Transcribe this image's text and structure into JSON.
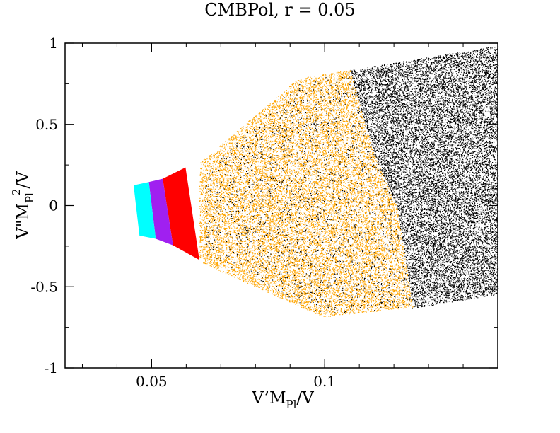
{
  "chart_data": {
    "type": "scatter",
    "title": "CMBPol, r = 0.05",
    "xlabel": {
      "main_a": "V’M",
      "sub": "Pl",
      "main_b": "/V"
    },
    "ylabel": {
      "main_a": "V\"M",
      "sub": "Pl",
      "sup": "2",
      "main_b": "/V"
    },
    "xlim": [
      0.025,
      0.15
    ],
    "ylim": [
      -1,
      1
    ],
    "x_ticks": [
      {
        "value": 0.05,
        "label": "0.05"
      },
      {
        "value": 0.1,
        "label": "0.1"
      }
    ],
    "y_ticks": [
      {
        "value": 1,
        "label": "1"
      },
      {
        "value": 0.5,
        "label": "0.5"
      },
      {
        "value": 0,
        "label": "0"
      },
      {
        "value": -0.5,
        "label": "-0.5"
      },
      {
        "value": -1,
        "label": "-1"
      }
    ],
    "grid": false,
    "legend": "none",
    "regions": [
      {
        "color": "#000000",
        "kind": "scatter",
        "density": 16000,
        "polygon": [
          [
            0.1073,
            0.835
          ],
          [
            0.15,
            0.985
          ],
          [
            0.15,
            -0.545
          ],
          [
            0.1245,
            -0.635
          ],
          [
            0.1255,
            -0.625
          ],
          [
            0.1207,
            0.0
          ],
          [
            0.1136,
            0.36
          ]
        ]
      },
      {
        "color": "#ffa500",
        "kind": "scatter",
        "density": 17000,
        "polygon": [
          [
            0.0638,
            0.265
          ],
          [
            0.0925,
            0.785
          ],
          [
            0.1073,
            0.835
          ],
          [
            0.1136,
            0.36
          ],
          [
            0.1207,
            0.0
          ],
          [
            0.1255,
            -0.625
          ],
          [
            0.0995,
            -0.685
          ],
          [
            0.0638,
            -0.345
          ]
        ]
      },
      {
        "color": "#000000",
        "kind": "scatter",
        "density": 2200,
        "polygon": [
          [
            0.0655,
            0.2
          ],
          [
            0.0925,
            0.76
          ],
          [
            0.107,
            0.83
          ],
          [
            0.12,
            0.0
          ],
          [
            0.125,
            -0.62
          ],
          [
            0.0995,
            -0.68
          ],
          [
            0.0655,
            -0.3
          ]
        ]
      },
      {
        "color": "#ff0000",
        "kind": "solid",
        "polygon": [
          [
            0.0532,
            0.165
          ],
          [
            0.0598,
            0.235
          ],
          [
            0.0638,
            -0.335
          ],
          [
            0.0562,
            -0.245
          ]
        ]
      },
      {
        "color": "#a020f0",
        "kind": "solid",
        "polygon": [
          [
            0.0492,
            0.145
          ],
          [
            0.0532,
            0.165
          ],
          [
            0.0562,
            -0.245
          ],
          [
            0.0512,
            -0.205
          ]
        ]
      },
      {
        "color": "#00ffff",
        "kind": "solid",
        "polygon": [
          [
            0.0448,
            0.125
          ],
          [
            0.0492,
            0.145
          ],
          [
            0.0512,
            -0.205
          ],
          [
            0.0465,
            -0.185
          ]
        ]
      }
    ]
  }
}
